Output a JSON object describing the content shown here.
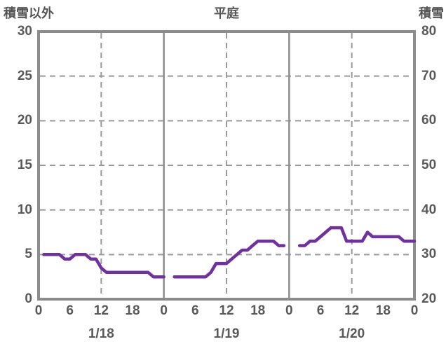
{
  "header": {
    "left_axis_title": "積雪以外",
    "chart_title": "平庭",
    "right_axis_title": "積雪"
  },
  "colors": {
    "line": "#7030A0",
    "frame": "#8C8C8C",
    "grid_dashed": "#999999",
    "day_separator": "#8C8C8C",
    "text": "#595959",
    "background": "#FFFFFF"
  },
  "chart_data": {
    "type": "line",
    "title": "平庭",
    "station": "平庭",
    "left_axis": {
      "label": "積雪以外",
      "min": 0,
      "max": 30,
      "ticks": [
        "30",
        "25",
        "20",
        "15",
        "10",
        "5",
        "0"
      ],
      "tick_values": [
        30,
        25,
        20,
        15,
        10,
        5,
        0
      ]
    },
    "right_axis": {
      "label": "積雪",
      "min": 20,
      "max": 80,
      "ticks": [
        "80",
        "70",
        "60",
        "50",
        "40",
        "30",
        "20"
      ],
      "tick_values": [
        80,
        70,
        60,
        50,
        40,
        30,
        20
      ],
      "relation_to_left_scale": "right = 20 + 2 x left"
    },
    "x_axis": {
      "total_hours": 72,
      "hour_tick_hours": [
        0,
        6,
        12,
        18,
        24,
        30,
        36,
        42,
        48,
        54,
        60,
        66,
        72
      ],
      "hour_tick_labels": [
        "0",
        "6",
        "12",
        "18",
        "0",
        "6",
        "12",
        "18",
        "0",
        "6",
        "12",
        "18",
        "0"
      ],
      "day_labels": [
        {
          "label": "1/18",
          "center_hour": 12
        },
        {
          "label": "1/19",
          "center_hour": 36
        },
        {
          "label": "1/20",
          "center_hour": 60
        }
      ],
      "solid_gridline_hours": [
        24,
        48
      ],
      "dashed_gridline_hours": [
        12,
        36,
        60
      ]
    },
    "horizontal_dashed_gridline_values": [
      5,
      10,
      15,
      20,
      25
    ],
    "grid": "dashed horizontal every 5 (left scale); dashed vertical at 12h of each day; solid vertical at day boundaries",
    "legend_position": "none",
    "series": [
      {
        "name": "積雪",
        "color": "#7030A0",
        "scale": "left-axis units (0-30); equivalent right-axis snow depth = 20 + 2 x value",
        "points_format": "[hour_since_1/18_00h, value]",
        "segments": [
          [
            [
              1,
              5
            ],
            [
              2,
              5
            ],
            [
              3,
              5
            ],
            [
              4,
              5
            ],
            [
              5,
              4.5
            ],
            [
              6,
              4.5
            ],
            [
              7,
              5
            ],
            [
              8,
              5
            ],
            [
              9,
              5
            ],
            [
              10,
              4.5
            ],
            [
              11,
              4.5
            ],
            [
              12,
              3.5
            ],
            [
              13,
              3
            ],
            [
              14,
              3
            ],
            [
              15,
              3
            ],
            [
              16,
              3
            ],
            [
              17,
              3
            ],
            [
              18,
              3
            ],
            [
              19,
              3
            ],
            [
              20,
              3
            ],
            [
              21,
              3
            ],
            [
              22,
              2.5
            ],
            [
              23,
              2.5
            ],
            [
              24,
              2.5
            ]
          ],
          [
            [
              26,
              2.5
            ],
            [
              27,
              2.5
            ],
            [
              28,
              2.5
            ],
            [
              29,
              2.5
            ],
            [
              30,
              2.5
            ],
            [
              31,
              2.5
            ],
            [
              32,
              2.5
            ],
            [
              33,
              3
            ],
            [
              34,
              4
            ],
            [
              35,
              4
            ],
            [
              36,
              4
            ],
            [
              37,
              4.5
            ],
            [
              38,
              5
            ],
            [
              39,
              5.5
            ],
            [
              40,
              5.5
            ],
            [
              41,
              6
            ],
            [
              42,
              6.5
            ],
            [
              43,
              6.5
            ],
            [
              44,
              6.5
            ],
            [
              45,
              6.5
            ],
            [
              46,
              6
            ],
            [
              47,
              6
            ]
          ],
          [
            [
              50,
              6
            ],
            [
              51,
              6
            ],
            [
              52,
              6.5
            ],
            [
              53,
              6.5
            ],
            [
              54,
              7
            ],
            [
              55,
              7.5
            ],
            [
              56,
              8
            ],
            [
              57,
              8
            ],
            [
              58,
              8
            ],
            [
              59,
              6.5
            ],
            [
              60,
              6.5
            ],
            [
              61,
              6.5
            ],
            [
              62,
              6.5
            ],
            [
              63,
              7.5
            ],
            [
              64,
              7
            ],
            [
              65,
              7
            ],
            [
              66,
              7
            ],
            [
              67,
              7
            ],
            [
              68,
              7
            ],
            [
              69,
              7
            ],
            [
              70,
              6.5
            ],
            [
              71,
              6.5
            ],
            [
              72,
              6.5
            ]
          ]
        ]
      }
    ]
  }
}
